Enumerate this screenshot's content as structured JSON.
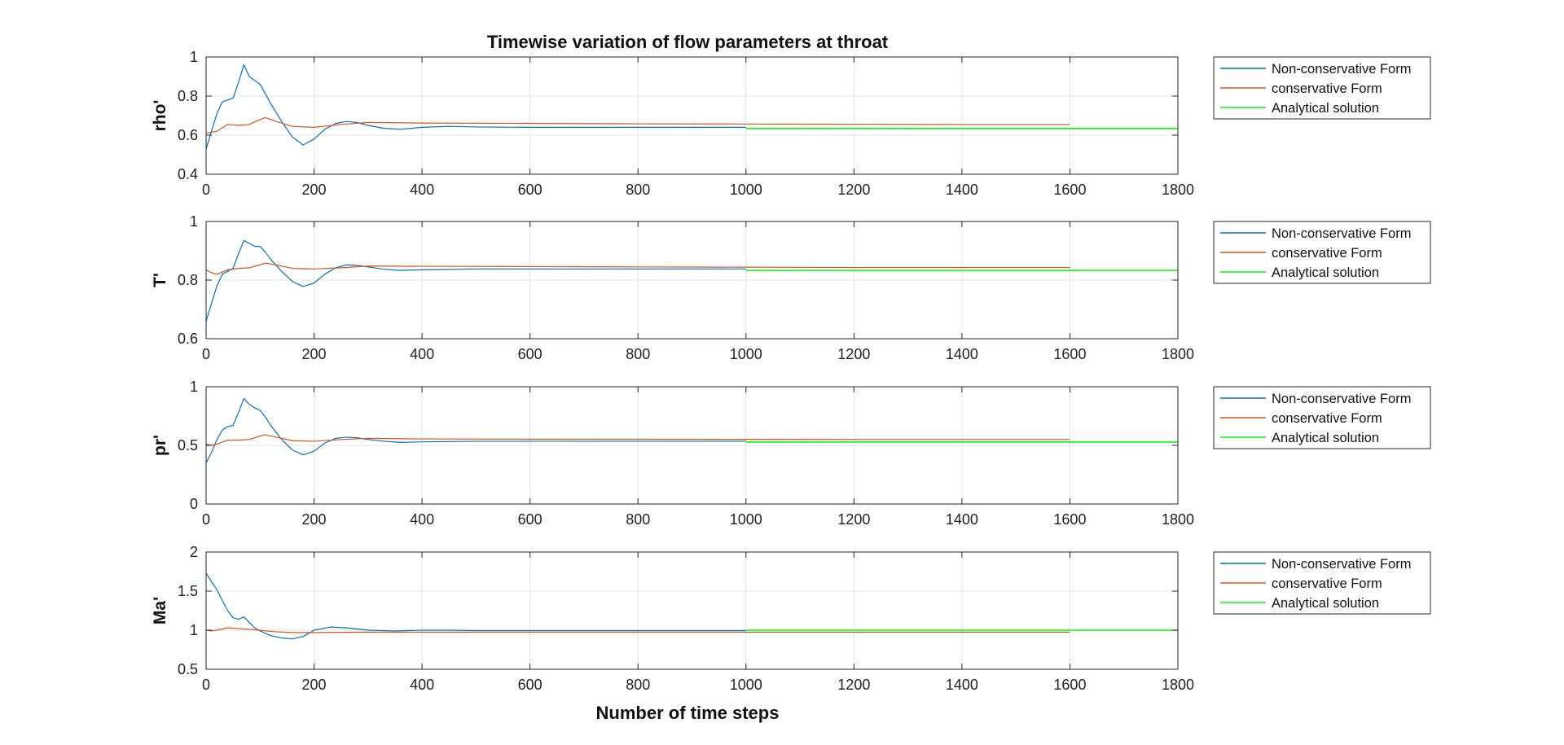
{
  "title": "Timewise variation of flow parameters at throat",
  "xlabel": "Number of time steps",
  "colors": {
    "non_conservative": "#0072BD",
    "conservative": "#D95319",
    "analytical": "#00FF00",
    "grid": "#e3e3e3",
    "axes": "#262626"
  },
  "legend_entries": [
    "Non-conservative Form",
    "conservative Form",
    "Analytical solution"
  ],
  "chart_data": [
    {
      "type": "line",
      "ylabel": "rho'",
      "xlim": [
        0,
        1800
      ],
      "ylim": [
        0.4,
        1
      ],
      "xticks": [
        0,
        200,
        400,
        600,
        800,
        1000,
        1200,
        1400,
        1600,
        1800
      ],
      "yticks": [
        0.4,
        0.6,
        0.8,
        1
      ],
      "ytick_labels": [
        "0.4",
        "0.6",
        "0.8",
        "1"
      ],
      "grid": true,
      "legend_position": "outside-right",
      "series": [
        {
          "name": "Non-conservative Form",
          "color": "#0072BD",
          "x": [
            0,
            10,
            20,
            30,
            40,
            50,
            60,
            70,
            80,
            90,
            100,
            110,
            120,
            140,
            160,
            180,
            200,
            220,
            240,
            260,
            280,
            300,
            330,
            360,
            400,
            450,
            500,
            600,
            700,
            800,
            900,
            1000
          ],
          "y": [
            0.53,
            0.62,
            0.71,
            0.77,
            0.78,
            0.79,
            0.87,
            0.96,
            0.9,
            0.88,
            0.86,
            0.81,
            0.76,
            0.67,
            0.59,
            0.55,
            0.58,
            0.63,
            0.66,
            0.67,
            0.665,
            0.65,
            0.635,
            0.63,
            0.64,
            0.645,
            0.642,
            0.64,
            0.64,
            0.64,
            0.64,
            0.64
          ]
        },
        {
          "name": "conservative Form",
          "color": "#D95319",
          "x": [
            0,
            20,
            40,
            60,
            80,
            100,
            110,
            130,
            160,
            200,
            250,
            300,
            400,
            600,
            800,
            1000,
            1200,
            1400,
            1600
          ],
          "y": [
            0.61,
            0.62,
            0.655,
            0.65,
            0.655,
            0.68,
            0.69,
            0.67,
            0.645,
            0.64,
            0.655,
            0.665,
            0.662,
            0.66,
            0.658,
            0.657,
            0.656,
            0.655,
            0.655
          ]
        },
        {
          "name": "Analytical solution",
          "color": "#00FF00",
          "x": [
            1000,
            1800
          ],
          "y": [
            0.634,
            0.634
          ]
        }
      ]
    },
    {
      "type": "line",
      "ylabel": "T'",
      "xlim": [
        0,
        1800
      ],
      "ylim": [
        0.6,
        1
      ],
      "xticks": [
        0,
        200,
        400,
        600,
        800,
        1000,
        1200,
        1400,
        1600,
        1800
      ],
      "yticks": [
        0.6,
        0.8,
        1
      ],
      "ytick_labels": [
        "0.6",
        "0.8",
        "1"
      ],
      "grid": true,
      "legend_position": "outside-right",
      "series": [
        {
          "name": "Non-conservative Form",
          "color": "#0072BD",
          "x": [
            0,
            10,
            20,
            30,
            40,
            50,
            60,
            70,
            80,
            90,
            100,
            110,
            120,
            140,
            160,
            180,
            200,
            220,
            240,
            260,
            280,
            300,
            330,
            360,
            400,
            500,
            600,
            800,
            1000
          ],
          "y": [
            0.66,
            0.72,
            0.78,
            0.82,
            0.83,
            0.84,
            0.89,
            0.935,
            0.925,
            0.915,
            0.915,
            0.895,
            0.87,
            0.83,
            0.795,
            0.778,
            0.79,
            0.82,
            0.842,
            0.852,
            0.85,
            0.845,
            0.837,
            0.833,
            0.835,
            0.838,
            0.838,
            0.838,
            0.838
          ]
        },
        {
          "name": "conservative Form",
          "color": "#D95319",
          "x": [
            0,
            10,
            20,
            40,
            60,
            80,
            100,
            110,
            130,
            160,
            200,
            250,
            300,
            400,
            600,
            800,
            1000,
            1200,
            1400,
            1600
          ],
          "y": [
            0.835,
            0.825,
            0.82,
            0.835,
            0.84,
            0.842,
            0.852,
            0.858,
            0.852,
            0.84,
            0.838,
            0.842,
            0.848,
            0.847,
            0.846,
            0.845,
            0.844,
            0.843,
            0.843,
            0.843
          ]
        },
        {
          "name": "Analytical solution",
          "color": "#00FF00",
          "x": [
            1000,
            1800
          ],
          "y": [
            0.833,
            0.833
          ]
        }
      ]
    },
    {
      "type": "line",
      "ylabel": "pr'",
      "xlim": [
        0,
        1800
      ],
      "ylim": [
        0,
        1
      ],
      "xticks": [
        0,
        200,
        400,
        600,
        800,
        1000,
        1200,
        1400,
        1600,
        1800
      ],
      "yticks": [
        0,
        0.5,
        1
      ],
      "ytick_labels": [
        "0",
        "0.5",
        "1"
      ],
      "grid": true,
      "legend_position": "outside-right",
      "series": [
        {
          "name": "Non-conservative Form",
          "color": "#0072BD",
          "x": [
            0,
            10,
            20,
            30,
            40,
            50,
            60,
            70,
            80,
            90,
            100,
            110,
            120,
            140,
            160,
            180,
            200,
            220,
            240,
            260,
            280,
            300,
            330,
            360,
            400,
            500,
            600,
            800,
            1000
          ],
          "y": [
            0.35,
            0.44,
            0.55,
            0.63,
            0.66,
            0.67,
            0.78,
            0.9,
            0.85,
            0.82,
            0.8,
            0.74,
            0.67,
            0.55,
            0.46,
            0.42,
            0.45,
            0.52,
            0.56,
            0.57,
            0.565,
            0.55,
            0.535,
            0.525,
            0.53,
            0.535,
            0.535,
            0.535,
            0.535
          ]
        },
        {
          "name": "conservative Form",
          "color": "#D95319",
          "x": [
            0,
            10,
            20,
            40,
            60,
            80,
            100,
            110,
            130,
            160,
            200,
            250,
            300,
            400,
            600,
            800,
            1000,
            1200,
            1400,
            1600
          ],
          "y": [
            0.51,
            0.5,
            0.51,
            0.545,
            0.545,
            0.55,
            0.58,
            0.59,
            0.57,
            0.54,
            0.535,
            0.55,
            0.56,
            0.555,
            0.553,
            0.552,
            0.551,
            0.55,
            0.55,
            0.55
          ]
        },
        {
          "name": "Analytical solution",
          "color": "#00FF00",
          "x": [
            1000,
            1800
          ],
          "y": [
            0.528,
            0.528
          ]
        }
      ]
    },
    {
      "type": "line",
      "ylabel": "Ma'",
      "xlim": [
        0,
        1800
      ],
      "ylim": [
        0.5,
        2
      ],
      "xticks": [
        0,
        200,
        400,
        600,
        800,
        1000,
        1200,
        1400,
        1600,
        1800
      ],
      "yticks": [
        0.5,
        1,
        1.5,
        2
      ],
      "ytick_labels": [
        "0.5",
        "1",
        "1.5",
        "2"
      ],
      "grid": true,
      "legend_position": "outside-right",
      "series": [
        {
          "name": "Non-conservative Form",
          "color": "#0072BD",
          "x": [
            0,
            10,
            20,
            30,
            40,
            50,
            60,
            70,
            80,
            90,
            100,
            120,
            140,
            160,
            180,
            200,
            230,
            260,
            300,
            350,
            400,
            450,
            500,
            600,
            800,
            1000
          ],
          "y": [
            1.73,
            1.62,
            1.52,
            1.38,
            1.25,
            1.16,
            1.14,
            1.17,
            1.1,
            1.03,
            0.99,
            0.93,
            0.9,
            0.89,
            0.92,
            1.0,
            1.04,
            1.03,
            1.0,
            0.99,
            1.0,
            1.0,
            0.995,
            0.995,
            0.995,
            0.995
          ]
        },
        {
          "name": "conservative Form",
          "color": "#D95319",
          "x": [
            0,
            10,
            20,
            40,
            60,
            80,
            100,
            110,
            130,
            160,
            200,
            300,
            400,
            600,
            800,
            1000,
            1200,
            1400,
            1600
          ],
          "y": [
            1.0,
            0.99,
            1.0,
            1.03,
            1.02,
            1.01,
            1.0,
            0.99,
            0.98,
            0.97,
            0.97,
            0.975,
            0.975,
            0.975,
            0.975,
            0.975,
            0.975,
            0.975,
            0.975
          ]
        },
        {
          "name": "Analytical solution",
          "color": "#00FF00",
          "x": [
            1000,
            1800
          ],
          "y": [
            1.0,
            1.0
          ]
        }
      ]
    }
  ]
}
